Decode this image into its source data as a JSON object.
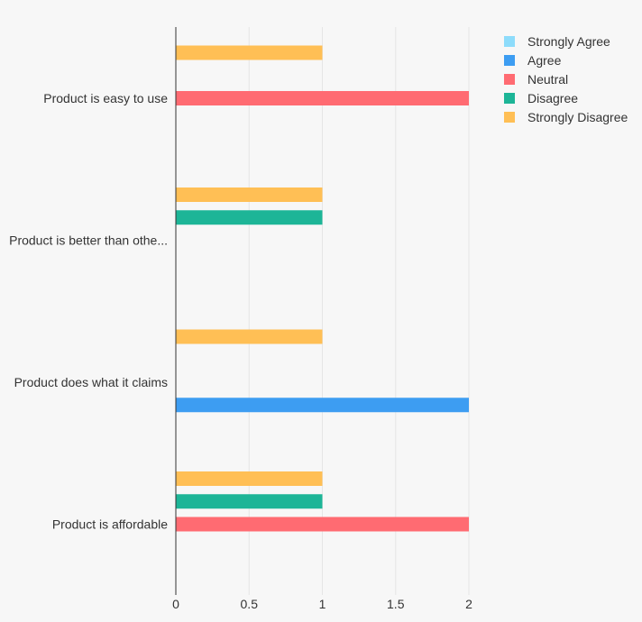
{
  "chart_data": {
    "type": "bar",
    "orientation": "horizontal",
    "categories": [
      "Product is easy to use",
      "Product is better than othe...",
      "Product does what it claims",
      "Product is affordable"
    ],
    "series": [
      {
        "name": "Strongly Agree",
        "color": "#8ddcfb",
        "values": [
          0,
          0,
          0,
          0
        ]
      },
      {
        "name": "Agree",
        "color": "#3d9df2",
        "values": [
          0,
          0,
          2,
          0
        ]
      },
      {
        "name": "Neutral",
        "color": "#ff6b72",
        "values": [
          2,
          0,
          0,
          2
        ]
      },
      {
        "name": "Disagree",
        "color": "#1db597",
        "values": [
          0,
          1,
          0,
          1
        ]
      },
      {
        "name": "Strongly Disagree",
        "color": "#ffbf55",
        "values": [
          1,
          1,
          1,
          1
        ]
      }
    ],
    "xlim": [
      0,
      2
    ],
    "xticks": [
      "0",
      "0.5",
      "1",
      "1.5",
      "2"
    ],
    "title": "",
    "xlabel": "",
    "ylabel": "",
    "grid": true,
    "legend_position": "top-right"
  }
}
